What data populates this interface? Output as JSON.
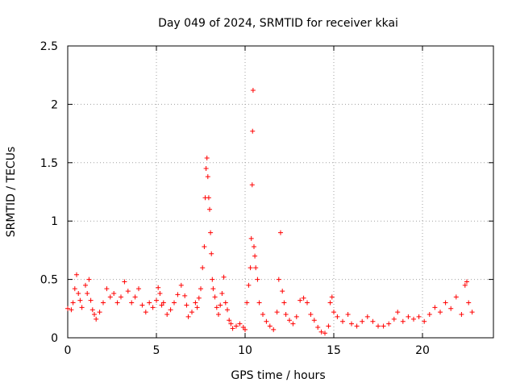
{
  "chart_data": {
    "type": "scatter",
    "title": "Day 049 of 2024, SRMTID for receiver kkai",
    "xlabel": "GPS time / hours",
    "ylabel": "SRMTID / TECUs",
    "xlim": [
      0,
      24
    ],
    "ylim": [
      0,
      2.5
    ],
    "xticks": [
      0,
      5,
      10,
      15,
      20
    ],
    "yticks": [
      0,
      0.5,
      1,
      1.5,
      2,
      2.5
    ],
    "xtick_labels": [
      "0",
      "5",
      "10",
      "15",
      "20"
    ],
    "ytick_labels": [
      "0",
      "0.5",
      "1",
      "1.5",
      "2",
      "2.5"
    ],
    "grid": true,
    "marker": "+",
    "series": [
      {
        "name": "SRMTID",
        "color": "#ff0000",
        "x": [
          0.0,
          0.2,
          0.3,
          0.4,
          0.5,
          0.6,
          0.7,
          0.8,
          1.0,
          1.1,
          1.2,
          1.3,
          1.4,
          1.5,
          1.6,
          1.8,
          2.0,
          2.2,
          2.4,
          2.6,
          2.8,
          3.0,
          3.2,
          3.4,
          3.6,
          3.8,
          4.0,
          4.2,
          4.4,
          4.6,
          4.8,
          5.0,
          5.1,
          5.2,
          5.3,
          5.4,
          5.6,
          5.8,
          6.0,
          6.2,
          6.4,
          6.6,
          6.7,
          6.8,
          7.0,
          7.2,
          7.3,
          7.4,
          7.5,
          7.6,
          7.7,
          7.75,
          7.8,
          7.85,
          7.9,
          7.95,
          8.0,
          8.05,
          8.1,
          8.15,
          8.2,
          8.3,
          8.4,
          8.5,
          8.6,
          8.7,
          8.8,
          8.9,
          9.0,
          9.1,
          9.2,
          9.3,
          9.5,
          9.7,
          9.9,
          10.0,
          10.1,
          10.2,
          10.3,
          10.35,
          10.4,
          10.42,
          10.45,
          10.5,
          10.55,
          10.6,
          10.7,
          10.8,
          11.0,
          11.2,
          11.4,
          11.6,
          11.8,
          11.9,
          12.0,
          12.1,
          12.2,
          12.3,
          12.5,
          12.7,
          12.9,
          13.1,
          13.3,
          13.5,
          13.7,
          13.9,
          14.1,
          14.3,
          14.5,
          14.7,
          14.8,
          14.9,
          15.0,
          15.2,
          15.5,
          15.8,
          16.0,
          16.3,
          16.6,
          16.9,
          17.2,
          17.5,
          17.8,
          18.1,
          18.4,
          18.6,
          18.9,
          19.2,
          19.5,
          19.8,
          20.1,
          20.4,
          20.7,
          21.0,
          21.3,
          21.6,
          21.9,
          22.2,
          22.4,
          22.5,
          22.6,
          22.8
        ],
        "y": [
          0.25,
          0.24,
          0.3,
          0.42,
          0.54,
          0.38,
          0.32,
          0.26,
          0.45,
          0.38,
          0.5,
          0.32,
          0.24,
          0.2,
          0.16,
          0.22,
          0.3,
          0.42,
          0.35,
          0.38,
          0.3,
          0.35,
          0.48,
          0.4,
          0.3,
          0.35,
          0.42,
          0.28,
          0.22,
          0.3,
          0.26,
          0.32,
          0.43,
          0.38,
          0.28,
          0.3,
          0.2,
          0.24,
          0.3,
          0.37,
          0.45,
          0.36,
          0.28,
          0.18,
          0.22,
          0.3,
          0.26,
          0.34,
          0.42,
          0.6,
          0.78,
          1.2,
          1.45,
          1.54,
          1.38,
          1.2,
          1.1,
          0.9,
          0.72,
          0.5,
          0.42,
          0.35,
          0.26,
          0.2,
          0.28,
          0.38,
          0.52,
          0.3,
          0.24,
          0.15,
          0.12,
          0.08,
          0.1,
          0.12,
          0.09,
          0.07,
          0.3,
          0.45,
          0.6,
          0.85,
          1.31,
          1.77,
          2.12,
          0.78,
          0.7,
          0.6,
          0.5,
          0.3,
          0.2,
          0.14,
          0.1,
          0.07,
          0.22,
          0.5,
          0.9,
          0.4,
          0.3,
          0.2,
          0.15,
          0.12,
          0.18,
          0.32,
          0.34,
          0.3,
          0.2,
          0.15,
          0.09,
          0.05,
          0.04,
          0.1,
          0.3,
          0.35,
          0.22,
          0.18,
          0.14,
          0.2,
          0.12,
          0.1,
          0.14,
          0.18,
          0.14,
          0.1,
          0.1,
          0.12,
          0.16,
          0.22,
          0.14,
          0.18,
          0.16,
          0.18,
          0.14,
          0.2,
          0.26,
          0.22,
          0.3,
          0.25,
          0.35,
          0.2,
          0.45,
          0.48,
          0.3,
          0.22
        ]
      }
    ]
  }
}
